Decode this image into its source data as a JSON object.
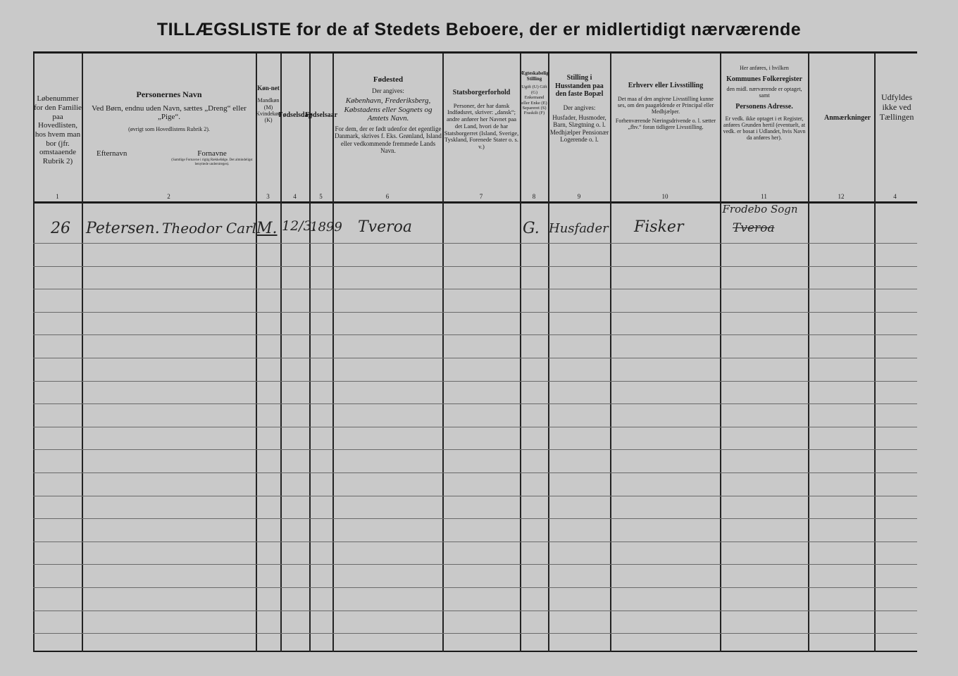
{
  "title": "TILLÆGSLISTE for de af Stedets Beboere, der er midlertidigt nærværende",
  "columns": [
    {
      "num": "1",
      "heading": "",
      "text": "Løbenummer for den Familie paa Hovedlisten, hos hvem man bor (jfr. omstaaende Rubrik 2)"
    },
    {
      "num": "2",
      "heading": "Personernes Navn",
      "text": "Ved Børn, endnu uden Navn, sættes „Dreng“ eller „Pige“.",
      "note": "(øvrigt som Hovedlistens Rubrik 2).",
      "sub_left": "Efternavn",
      "sub_right": "Fornavne",
      "sub_right_note": "(Samtlige Fornavne i rigtig Rækkefølge. Det almindeligst benyttede understreges)."
    },
    {
      "num": "3",
      "heading": "Køn-net",
      "text": "Mandkøn (M) Kvindekøn (K)"
    },
    {
      "num": "4",
      "heading": "Fødselsdag",
      "text": ""
    },
    {
      "num": "5",
      "heading": "Fødselsaar",
      "text": ""
    },
    {
      "num": "6",
      "heading": "Fødested",
      "text": "Der angives:",
      "text2": "København, Frederiksberg, Købstadens eller Sognets og Amtets Navn.",
      "text3": "For dem, der er født udenfor det egentlige Danmark, skrives f. Eks. Grønland, Island eller vedkommende fremmede Lands Navn."
    },
    {
      "num": "7",
      "heading": "Statsborgerforhold",
      "text": "Personer, der har dansk Indfødsret, skriver: „dansk“; andre anfører her Navnet paa det Land, hvori de har Statsborgerret (Island, Sverige, Tyskland, Forenede Stater o. s. v.)"
    },
    {
      "num": "8",
      "heading": "Ægteskabelig Stilling",
      "text": "Ugift (U) Gift (G) Enkemand eller Enke (E) Separeret (S) Fraskilt (F)"
    },
    {
      "num": "9",
      "heading": "Stilling i Husstanden paa den faste Bopæl",
      "text": "Der angives:",
      "text2": "Husfader, Husmoder, Barn, Slægtning o. l. Medhjælper Pensionær Logerende o. l."
    },
    {
      "num": "10",
      "heading": "Erhverv eller Livsstilling",
      "text": "Det maa af den angivne Livsstilling kunne ses, om den paagældende er Principal eller Medhjælper.",
      "text2": "Forhenværende Næringsdrivende o. l. sætter „fhv.“ foran tidligere Livsstilling."
    },
    {
      "num": "11",
      "pre": "Her anføres, i hvilken",
      "heading": "Kommunes Folkeregister",
      "text": "den midl. nærværende er optaget, samt",
      "heading2": "Personens Adresse.",
      "text2": "Er vedk. ikke optaget i et Register, anføres Grunden hertil (eventuelt, at vedk. er bosat i Udlandet, hvis Navn da anføres her)."
    },
    {
      "num": "12",
      "heading": "Anmærkninger",
      "text": ""
    },
    {
      "num": "4",
      "heading": "",
      "text": "Udfyldes ikke ved Tællingen"
    }
  ],
  "entries": [
    {
      "lobenummer": "26",
      "efternavn": "Petersen.",
      "fornavne": "Theodor Carl",
      "kon": "M.",
      "fodselsdag": "12/3.",
      "fodselsaar": "1899",
      "fodested": "Tveroa",
      "statsborger": "",
      "aegteskab": "G.",
      "stilling": "Husfader",
      "erhverv": "Fisker",
      "folkeregister": "Frodebo Sogn",
      "folkeregister_struck": "Tveroa",
      "anmaerkninger": ""
    }
  ]
}
